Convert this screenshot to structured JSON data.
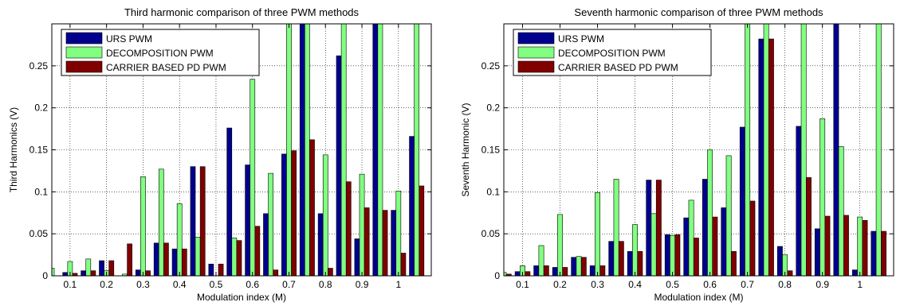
{
  "chart_data": [
    {
      "type": "bar",
      "title": "Third harmonic comparison of three PWM methods",
      "xlabel": "Modulation index (M)",
      "ylabel": "Third Harmonics (V)",
      "ylim": [
        0,
        0.3
      ],
      "xlim": [
        0.05,
        1.09
      ],
      "yticks": [
        0,
        0.05,
        0.1,
        0.15,
        0.2,
        0.25
      ],
      "ytick_labels": [
        "0",
        "0.05",
        "0.1",
        "0.15",
        "0.2",
        "0.25"
      ],
      "xticks": [
        0.1,
        0.2,
        0.3,
        0.4,
        0.5,
        0.6,
        0.7,
        0.8,
        0.9,
        1.0
      ],
      "xtick_labels": [
        "0.1",
        "0.2",
        "0.3",
        "0.4",
        "0.5",
        "0.6",
        "0.7",
        "0.8",
        "0.9",
        "1"
      ],
      "grid": true,
      "legend_position": "top-left",
      "x": [
        0.05,
        0.1,
        0.15,
        0.2,
        0.25,
        0.3,
        0.35,
        0.4,
        0.45,
        0.5,
        0.55,
        0.6,
        0.65,
        0.7,
        0.75,
        0.8,
        0.85,
        0.9,
        0.95,
        1.0,
        1.05
      ],
      "series": [
        {
          "name": "URS PWM",
          "color": "#00008f",
          "values": [
            0.0,
            0.004,
            0.006,
            0.018,
            0.0,
            0.007,
            0.039,
            0.032,
            0.13,
            0.014,
            0.176,
            0.132,
            0.074,
            0.145,
            0.31,
            0.074,
            0.262,
            0.044,
            0.31,
            0.078,
            0.166
          ]
        },
        {
          "name": "DECOMPOSITION PWM",
          "color": "#80ff80",
          "values": [
            0.009,
            0.017,
            0.02,
            0.006,
            0.002,
            0.118,
            0.127,
            0.086,
            0.046,
            0.0,
            0.045,
            0.234,
            0.122,
            0.31,
            0.31,
            0.144,
            0.31,
            0.121,
            0.31,
            0.101,
            0.31
          ]
        },
        {
          "name": "CARRIER BASED PD PWM",
          "color": "#800000",
          "values": [
            0.0,
            0.003,
            0.006,
            0.018,
            0.038,
            0.006,
            0.039,
            0.032,
            0.13,
            0.014,
            0.042,
            0.059,
            0.007,
            0.149,
            0.162,
            0.009,
            0.112,
            0.081,
            0.078,
            0.027,
            0.107
          ]
        }
      ]
    },
    {
      "type": "bar",
      "title": "Seventh harmonic comparison of three PWM methods",
      "xlabel": "Modulation index (M)",
      "ylabel": "Seventh Harmonic (V)",
      "ylim": [
        0,
        0.3
      ],
      "xlim": [
        0.05,
        1.09
      ],
      "yticks": [
        0,
        0.05,
        0.1,
        0.15,
        0.2,
        0.25
      ],
      "ytick_labels": [
        "0",
        "0.05",
        "0.1",
        "0.15",
        "0.2",
        "0.25"
      ],
      "xticks": [
        0.1,
        0.2,
        0.3,
        0.4,
        0.5,
        0.6,
        0.7,
        0.8,
        0.9,
        1.0
      ],
      "xtick_labels": [
        "0.1",
        "0.2",
        "0.3",
        "0.4",
        "0.5",
        "0.6",
        "0.7",
        "0.8",
        "0.9",
        "1"
      ],
      "grid": true,
      "legend_position": "top-left",
      "x": [
        0.05,
        0.1,
        0.15,
        0.2,
        0.25,
        0.3,
        0.35,
        0.4,
        0.45,
        0.5,
        0.55,
        0.6,
        0.65,
        0.7,
        0.75,
        0.8,
        0.85,
        0.9,
        0.95,
        1.0,
        1.05
      ],
      "series": [
        {
          "name": "URS PWM",
          "color": "#00008f",
          "values": [
            0.003,
            0.005,
            0.012,
            0.01,
            0.022,
            0.012,
            0.041,
            0.029,
            0.114,
            0.049,
            0.069,
            0.115,
            0.081,
            0.177,
            0.282,
            0.035,
            0.178,
            0.056,
            0.31,
            0.007,
            0.053
          ]
        },
        {
          "name": "DECOMPOSITION PWM",
          "color": "#80ff80",
          "values": [
            0.004,
            0.012,
            0.036,
            0.073,
            0.023,
            0.099,
            0.115,
            0.061,
            0.074,
            0.048,
            0.09,
            0.15,
            0.143,
            0.31,
            0.31,
            0.025,
            0.31,
            0.187,
            0.154,
            0.07,
            0.31
          ]
        },
        {
          "name": "CARRIER BASED PD PWM",
          "color": "#800000",
          "values": [
            0.002,
            0.005,
            0.012,
            0.01,
            0.022,
            0.012,
            0.041,
            0.029,
            0.114,
            0.049,
            0.045,
            0.07,
            0.029,
            0.089,
            0.282,
            0.006,
            0.117,
            0.071,
            0.072,
            0.066,
            0.053
          ]
        }
      ]
    }
  ]
}
